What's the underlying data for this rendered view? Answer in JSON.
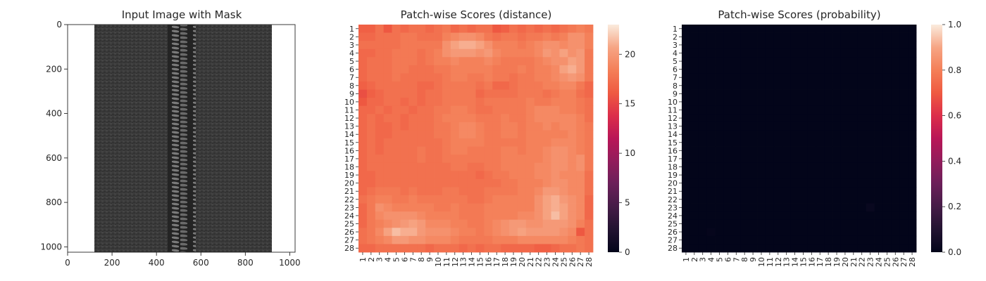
{
  "figure": {
    "panels": [
      {
        "title": "Input Image with Mask"
      },
      {
        "title": "Patch-wise Scores (distance)"
      },
      {
        "title": "Patch-wise Scores (probability)"
      }
    ]
  },
  "chart_data": [
    {
      "type": "image",
      "title": "Input Image with Mask",
      "xlabel": "",
      "ylabel": "",
      "xlim": [
        0,
        1024
      ],
      "ylim": [
        1024,
        0
      ],
      "xticks": [
        0,
        200,
        400,
        600,
        800,
        1000
      ],
      "yticks": [
        0,
        200,
        400,
        600,
        800,
        1000
      ],
      "image": {
        "subject": "zipper",
        "fabric_color": "#3c3c3c",
        "background_color": "#ffffff",
        "fabric_x_range": [
          120,
          905
        ],
        "teeth_x_range": [
          450,
          575
        ]
      }
    },
    {
      "type": "heatmap",
      "title": "Patch-wise Scores (distance)",
      "xlabel": "",
      "ylabel": "",
      "rows": [
        "1",
        "2",
        "3",
        "4",
        "5",
        "6",
        "7",
        "8",
        "9",
        "10",
        "11",
        "12",
        "13",
        "14",
        "15",
        "16",
        "17",
        "18",
        "19",
        "20",
        "21",
        "22",
        "23",
        "24",
        "25",
        "26",
        "27",
        "28"
      ],
      "cols": [
        "1",
        "2",
        "3",
        "4",
        "5",
        "6",
        "7",
        "8",
        "9",
        "10",
        "11",
        "12",
        "13",
        "14",
        "15",
        "16",
        "17",
        "18",
        "19",
        "20",
        "21",
        "22",
        "23",
        "24",
        "25",
        "26",
        "27",
        "28"
      ],
      "colorbar": {
        "min": 0,
        "max": 23,
        "ticks": [
          0,
          5,
          10,
          15,
          20
        ],
        "colormap": "rocket"
      },
      "values": [
        [
          16.5,
          16.5,
          17.5,
          16.0,
          17.5,
          17.0,
          17.5,
          17.5,
          17.0,
          17.5,
          18.0,
          17.0,
          17.5,
          17.0,
          17.5,
          17.5,
          16.0,
          16.5,
          17.5,
          17.0,
          17.5,
          17.0,
          17.5,
          17.0,
          17.5,
          18.0,
          18.5,
          18.0
        ],
        [
          17.0,
          17.0,
          17.5,
          17.5,
          17.5,
          18.0,
          18.0,
          17.5,
          17.5,
          17.5,
          18.5,
          19.0,
          19.5,
          19.5,
          19.0,
          18.0,
          17.5,
          18.0,
          18.0,
          17.5,
          18.0,
          18.0,
          18.5,
          18.0,
          18.5,
          19.5,
          19.5,
          18.5
        ],
        [
          17.5,
          17.5,
          17.5,
          17.5,
          17.5,
          18.0,
          18.0,
          18.0,
          18.0,
          18.0,
          19.5,
          20.5,
          21.0,
          21.0,
          20.5,
          19.5,
          18.5,
          18.5,
          18.5,
          18.0,
          18.5,
          19.0,
          19.5,
          19.5,
          19.0,
          19.5,
          19.5,
          18.5
        ],
        [
          17.0,
          17.0,
          17.5,
          17.5,
          18.0,
          18.0,
          18.0,
          17.5,
          18.0,
          18.5,
          19.5,
          20.0,
          20.0,
          20.0,
          19.5,
          20.0,
          19.0,
          18.5,
          18.5,
          18.5,
          18.5,
          19.0,
          20.0,
          19.5,
          20.5,
          19.5,
          20.0,
          18.0
        ],
        [
          17.0,
          17.5,
          17.5,
          17.5,
          18.0,
          18.0,
          18.0,
          17.5,
          18.0,
          18.5,
          18.5,
          19.0,
          18.5,
          18.5,
          18.5,
          19.0,
          18.5,
          18.0,
          18.0,
          18.0,
          18.0,
          18.5,
          19.0,
          19.5,
          19.5,
          20.5,
          20.0,
          18.0
        ],
        [
          17.0,
          17.5,
          17.5,
          17.5,
          18.0,
          18.0,
          17.5,
          17.5,
          17.5,
          18.0,
          18.0,
          18.5,
          18.5,
          18.5,
          18.5,
          18.5,
          18.0,
          18.0,
          18.0,
          18.5,
          18.0,
          18.5,
          18.5,
          19.0,
          20.5,
          21.0,
          20.0,
          18.0
        ],
        [
          17.0,
          17.5,
          17.5,
          17.5,
          18.0,
          17.5,
          17.5,
          17.5,
          17.5,
          17.5,
          18.0,
          18.5,
          18.5,
          18.0,
          18.0,
          18.5,
          18.0,
          18.0,
          17.5,
          18.0,
          18.0,
          18.5,
          18.5,
          19.0,
          19.5,
          20.0,
          19.5,
          18.0
        ],
        [
          16.5,
          17.0,
          17.5,
          17.5,
          17.5,
          17.5,
          17.5,
          17.0,
          17.0,
          17.5,
          18.0,
          18.0,
          18.0,
          18.0,
          17.5,
          18.0,
          17.0,
          17.0,
          17.5,
          18.0,
          18.0,
          18.0,
          18.5,
          18.5,
          19.0,
          19.0,
          18.0,
          17.0
        ],
        [
          15.5,
          16.5,
          17.0,
          17.5,
          17.5,
          17.5,
          17.5,
          17.0,
          17.5,
          17.5,
          18.0,
          18.0,
          18.0,
          18.0,
          17.0,
          17.5,
          17.5,
          17.5,
          17.5,
          18.0,
          18.0,
          18.0,
          17.5,
          18.0,
          18.5,
          18.5,
          17.5,
          17.0
        ],
        [
          16.0,
          17.0,
          17.0,
          17.5,
          17.5,
          17.0,
          17.5,
          17.0,
          17.5,
          17.5,
          18.0,
          18.0,
          18.0,
          18.0,
          17.5,
          18.0,
          18.0,
          18.0,
          18.0,
          18.0,
          18.5,
          18.0,
          18.0,
          18.5,
          18.5,
          18.5,
          18.0,
          17.5
        ],
        [
          17.0,
          17.0,
          17.5,
          17.0,
          17.5,
          17.5,
          17.0,
          17.5,
          17.5,
          18.0,
          18.0,
          18.5,
          18.5,
          18.0,
          17.5,
          17.5,
          18.0,
          18.0,
          18.0,
          18.0,
          18.5,
          19.0,
          19.0,
          19.0,
          18.5,
          18.5,
          18.0,
          17.5
        ],
        [
          17.0,
          17.5,
          17.0,
          17.5,
          17.5,
          17.0,
          17.5,
          17.5,
          17.5,
          18.0,
          18.5,
          18.5,
          18.5,
          18.5,
          18.0,
          18.0,
          18.0,
          18.5,
          18.0,
          18.0,
          18.5,
          19.0,
          19.0,
          19.0,
          19.0,
          19.0,
          18.5,
          17.5
        ],
        [
          17.0,
          17.5,
          17.0,
          17.0,
          17.5,
          17.0,
          17.5,
          17.5,
          17.5,
          18.0,
          18.0,
          18.5,
          19.0,
          19.0,
          18.5,
          18.0,
          18.0,
          18.5,
          18.5,
          18.0,
          18.5,
          18.5,
          19.0,
          18.5,
          19.0,
          19.0,
          18.5,
          18.0
        ],
        [
          17.0,
          17.5,
          17.0,
          17.0,
          17.5,
          17.5,
          17.5,
          17.5,
          17.5,
          18.0,
          18.0,
          18.5,
          19.0,
          19.0,
          18.5,
          18.0,
          18.0,
          18.5,
          18.5,
          18.0,
          18.5,
          18.5,
          18.5,
          18.5,
          18.5,
          19.0,
          18.5,
          18.0
        ],
        [
          17.0,
          17.5,
          17.0,
          17.5,
          17.5,
          17.5,
          17.5,
          17.5,
          17.5,
          17.5,
          18.0,
          18.5,
          18.5,
          18.5,
          18.5,
          18.0,
          18.0,
          18.0,
          18.0,
          18.0,
          18.5,
          18.5,
          18.5,
          19.0,
          19.0,
          19.0,
          18.5,
          18.0
        ],
        [
          17.0,
          17.5,
          17.0,
          17.5,
          17.5,
          17.5,
          17.5,
          18.0,
          17.5,
          17.5,
          18.0,
          18.5,
          18.5,
          18.0,
          18.0,
          18.0,
          18.0,
          18.5,
          18.5,
          18.0,
          18.5,
          18.5,
          19.0,
          19.5,
          19.5,
          19.0,
          18.5,
          18.0
        ],
        [
          17.0,
          17.5,
          17.5,
          17.5,
          17.5,
          17.5,
          17.5,
          18.0,
          17.5,
          17.5,
          18.0,
          18.0,
          18.0,
          18.0,
          18.0,
          18.0,
          18.0,
          18.5,
          18.5,
          18.5,
          18.5,
          18.5,
          19.0,
          19.5,
          19.5,
          19.0,
          19.5,
          18.0
        ],
        [
          17.0,
          17.5,
          17.5,
          17.5,
          17.5,
          17.5,
          17.5,
          17.5,
          17.5,
          17.5,
          17.5,
          18.0,
          18.0,
          17.5,
          17.5,
          18.0,
          18.0,
          18.5,
          18.5,
          18.5,
          18.5,
          19.0,
          19.0,
          19.5,
          19.5,
          19.0,
          19.5,
          18.0
        ],
        [
          17.0,
          17.0,
          17.5,
          17.5,
          17.5,
          17.5,
          17.5,
          17.5,
          17.5,
          17.5,
          17.5,
          17.5,
          17.5,
          17.5,
          17.0,
          17.5,
          18.0,
          18.0,
          18.5,
          18.5,
          18.5,
          19.0,
          19.0,
          19.5,
          19.0,
          19.0,
          19.0,
          17.5
        ],
        [
          17.0,
          17.0,
          17.5,
          17.5,
          17.5,
          17.5,
          17.5,
          17.5,
          17.5,
          17.5,
          17.5,
          17.5,
          17.5,
          17.5,
          17.5,
          17.5,
          17.5,
          18.0,
          18.0,
          18.5,
          18.5,
          18.5,
          19.0,
          19.5,
          19.5,
          19.0,
          19.0,
          17.5
        ],
        [
          17.0,
          17.5,
          18.0,
          18.0,
          18.0,
          17.5,
          18.0,
          17.5,
          17.5,
          17.5,
          18.0,
          18.0,
          17.5,
          17.5,
          17.5,
          18.0,
          18.0,
          18.0,
          18.0,
          18.5,
          18.5,
          19.0,
          20.0,
          20.0,
          19.5,
          19.0,
          19.0,
          17.5
        ],
        [
          17.5,
          18.0,
          18.5,
          18.5,
          18.0,
          18.0,
          18.5,
          18.0,
          18.0,
          18.0,
          18.0,
          18.0,
          18.0,
          17.5,
          17.5,
          18.0,
          18.5,
          18.5,
          18.5,
          18.5,
          18.5,
          19.5,
          20.5,
          21.0,
          20.0,
          19.5,
          19.0,
          17.0
        ],
        [
          17.0,
          18.0,
          19.5,
          19.0,
          18.5,
          18.5,
          18.5,
          18.5,
          18.5,
          18.0,
          18.0,
          18.5,
          18.0,
          18.0,
          18.0,
          18.5,
          18.5,
          18.5,
          18.5,
          18.5,
          18.5,
          19.5,
          20.5,
          21.0,
          20.5,
          19.5,
          19.0,
          17.0
        ],
        [
          17.0,
          18.0,
          19.0,
          19.5,
          19.5,
          19.5,
          19.5,
          19.0,
          18.5,
          18.5,
          18.5,
          18.5,
          18.0,
          18.0,
          18.0,
          18.5,
          18.5,
          18.5,
          18.5,
          19.0,
          19.0,
          19.5,
          20.5,
          21.5,
          20.5,
          19.5,
          19.0,
          17.0
        ],
        [
          17.0,
          18.0,
          18.5,
          19.0,
          19.5,
          20.0,
          20.5,
          20.0,
          19.0,
          19.0,
          19.0,
          18.5,
          18.5,
          18.0,
          18.0,
          18.5,
          19.0,
          19.5,
          20.0,
          20.0,
          19.5,
          19.5,
          20.0,
          20.0,
          20.0,
          19.5,
          18.5,
          17.5
        ],
        [
          17.5,
          18.0,
          19.0,
          20.5,
          21.5,
          21.0,
          21.0,
          20.0,
          19.5,
          19.5,
          19.5,
          19.0,
          18.5,
          18.5,
          18.0,
          18.5,
          19.0,
          19.5,
          20.0,
          20.5,
          20.0,
          20.0,
          20.0,
          20.0,
          19.5,
          19.0,
          16.0,
          17.5
        ],
        [
          17.5,
          18.0,
          18.5,
          19.0,
          20.0,
          20.0,
          19.5,
          19.5,
          19.0,
          19.0,
          19.0,
          18.5,
          18.0,
          18.0,
          18.0,
          18.0,
          18.5,
          18.5,
          18.5,
          19.0,
          19.0,
          19.0,
          19.0,
          19.0,
          19.0,
          18.5,
          18.0,
          17.5
        ],
        [
          17.0,
          17.0,
          17.5,
          17.5,
          17.5,
          17.5,
          17.5,
          17.5,
          17.0,
          17.5,
          17.5,
          17.5,
          17.0,
          17.5,
          17.0,
          17.5,
          17.5,
          17.0,
          17.0,
          17.0,
          17.0,
          16.5,
          16.5,
          17.0,
          17.5,
          17.5,
          18.0,
          17.5
        ]
      ]
    },
    {
      "type": "heatmap",
      "title": "Patch-wise Scores (probability)",
      "xlabel": "",
      "ylabel": "",
      "rows": [
        "1",
        "2",
        "3",
        "4",
        "5",
        "6",
        "7",
        "8",
        "9",
        "10",
        "11",
        "12",
        "13",
        "14",
        "15",
        "16",
        "17",
        "18",
        "19",
        "20",
        "21",
        "22",
        "23",
        "24",
        "25",
        "26",
        "27",
        "28"
      ],
      "cols": [
        "1",
        "2",
        "3",
        "4",
        "5",
        "6",
        "7",
        "8",
        "9",
        "10",
        "11",
        "12",
        "13",
        "14",
        "15",
        "16",
        "17",
        "18",
        "19",
        "20",
        "21",
        "22",
        "23",
        "24",
        "25",
        "26",
        "27",
        "28"
      ],
      "colorbar": {
        "min": 0.0,
        "max": 1.0,
        "ticks": [
          "0.0",
          "0.2",
          "0.4",
          "0.6",
          "0.8",
          "1.0"
        ],
        "colormap": "rocket"
      },
      "uniform_value": 0.0,
      "sparse_values": [
        {
          "row": 23,
          "col": 23,
          "value": 0.02
        },
        {
          "row": 26,
          "col": 4,
          "value": 0.01
        }
      ]
    }
  ]
}
